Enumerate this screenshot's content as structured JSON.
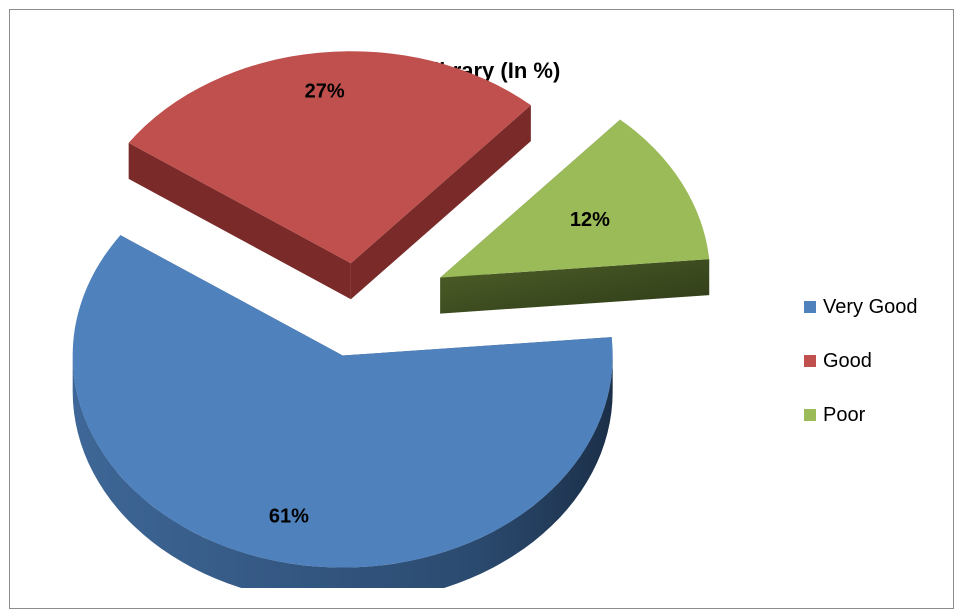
{
  "chart_data": {
    "type": "pie",
    "title": "Library (In %)",
    "categories": [
      "Very Good",
      "Good",
      "Poor"
    ],
    "values": [
      61,
      27,
      12
    ],
    "value_labels": [
      "61%",
      "27%",
      "12%"
    ],
    "colors": {
      "Very Good": "#4f81bd",
      "Good": "#c0504d",
      "Poor": "#9bbb59"
    },
    "style": "3d-exploded",
    "legend_position": "right"
  }
}
